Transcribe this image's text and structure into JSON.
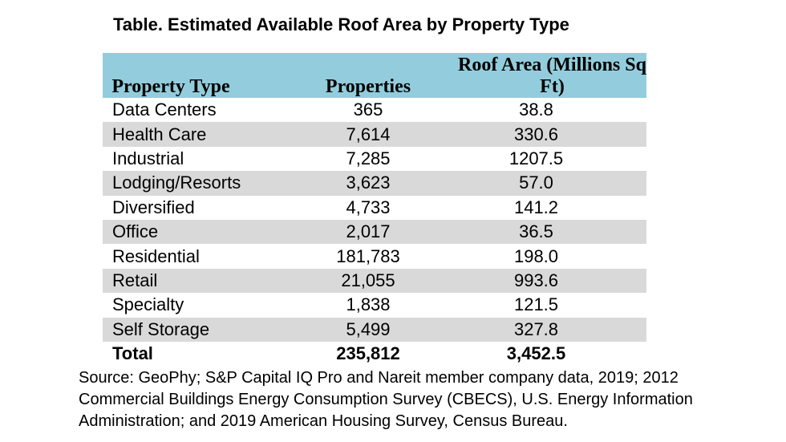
{
  "title": "Table. Estimated Available Roof Area by Property Type",
  "header": {
    "property_type": "Property Type",
    "properties": "Properties",
    "roof_area": "Roof Area (Millions Sq Ft)"
  },
  "rows": [
    {
      "type": "Data Centers",
      "properties": "365",
      "roof_area": "38.8"
    },
    {
      "type": "Health Care",
      "properties": "7,614",
      "roof_area": "330.6"
    },
    {
      "type": "Industrial",
      "properties": "7,285",
      "roof_area": "1207.5"
    },
    {
      "type": "Lodging/Resorts",
      "properties": "3,623",
      "roof_area": "57.0"
    },
    {
      "type": "Diversified",
      "properties": "4,733",
      "roof_area": "141.2"
    },
    {
      "type": "Office",
      "properties": "2,017",
      "roof_area": "36.5"
    },
    {
      "type": "Residential",
      "properties": "181,783",
      "roof_area": "198.0"
    },
    {
      "type": "Retail",
      "properties": "21,055",
      "roof_area": "993.6"
    },
    {
      "type": "Specialty",
      "properties": "1,838",
      "roof_area": "121.5"
    },
    {
      "type": "Self Storage",
      "properties": "5,499",
      "roof_area": "327.8"
    }
  ],
  "total": {
    "label": "Total",
    "properties": "235,812",
    "roof_area": "3,452.5"
  },
  "source": "Source: GeoPhy; S&P Capital IQ Pro and Nareit member company data, 2019; 2012 Commercial Buildings Energy Consumption Survey (CBECS), U.S. Energy Information Administration; and 2019 American Housing Survey, Census Bureau.",
  "colors": {
    "header_bg": "#93cddd",
    "stripe_bg": "#d9d9d9"
  }
}
